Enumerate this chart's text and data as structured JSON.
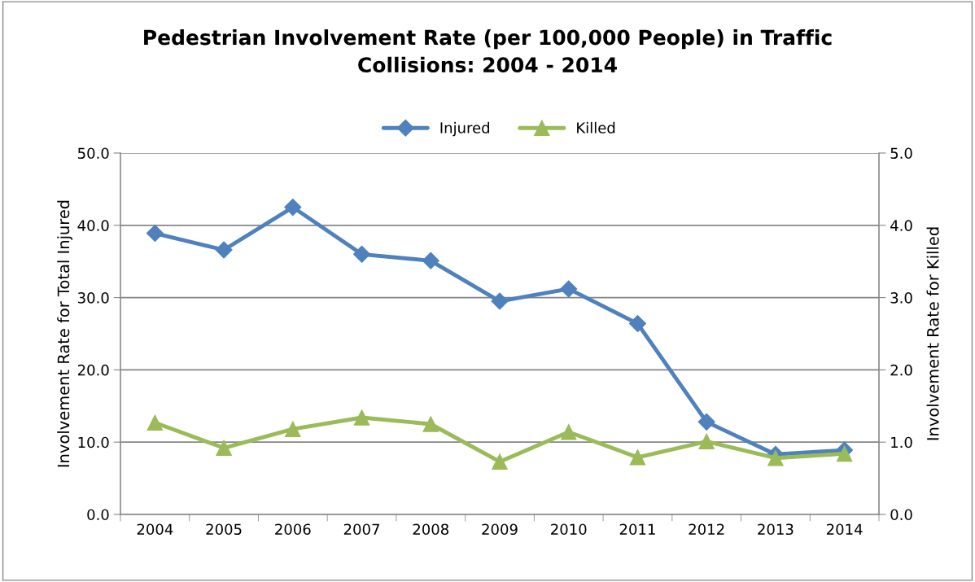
{
  "chart_data": {
    "type": "line",
    "title": "Pedestrian Involvement Rate (per 100,000 People) in Traffic\nCollisions: 2004 - 2014",
    "ylabel": "Involvement Rate for Total Injured",
    "y2label": "Involvement Rate for Killed",
    "categories": [
      "2004",
      "2005",
      "2006",
      "2007",
      "2008",
      "2009",
      "2010",
      "2011",
      "2012",
      "2013",
      "2014"
    ],
    "series": [
      {
        "name": "Injured",
        "color": "#4f81bd",
        "marker": "diamond",
        "values": [
          38.9,
          36.6,
          42.5,
          36.0,
          35.1,
          29.5,
          31.2,
          26.4,
          12.8,
          8.3,
          8.9
        ]
      },
      {
        "name": "Killed",
        "color": "#9bbb59",
        "marker": "triangle",
        "axis": "y2",
        "values": [
          1.27,
          0.92,
          1.18,
          1.34,
          1.25,
          0.73,
          1.14,
          0.79,
          1.01,
          0.78,
          0.84
        ]
      }
    ],
    "ylim": [
      0,
      50
    ],
    "yticks": [
      {
        "value": 0,
        "label": "0.0"
      },
      {
        "value": 10,
        "label": "10.0"
      },
      {
        "value": 20,
        "label": "20.0"
      },
      {
        "value": 30,
        "label": "30.0"
      },
      {
        "value": 40,
        "label": "40.0"
      },
      {
        "value": 50,
        "label": "50.0"
      }
    ],
    "y2lim": [
      0,
      5
    ],
    "y2ticks": [
      {
        "value": 0,
        "label": "0.0"
      },
      {
        "value": 1,
        "label": "1.0"
      },
      {
        "value": 2,
        "label": "2.0"
      },
      {
        "value": 3,
        "label": "3.0"
      },
      {
        "value": 4,
        "label": "4.0"
      },
      {
        "value": 5,
        "label": "5.0"
      }
    ],
    "grid": "y",
    "legend": "top",
    "line_style": "solid"
  }
}
